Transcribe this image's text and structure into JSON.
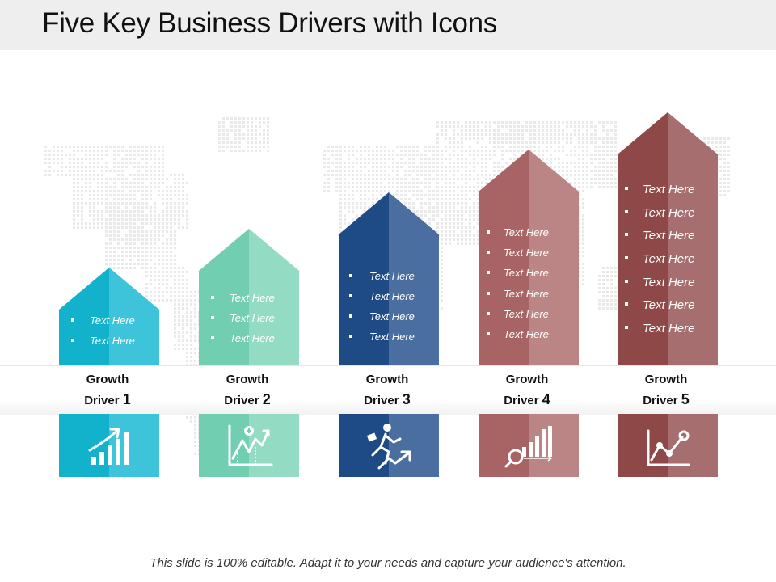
{
  "title": "Five Key Business Drivers with Icons",
  "footer": "This slide is 100% editable. Adapt it to your needs and capture your audience's attention.",
  "drivers": [
    {
      "label_line1": "Growth",
      "label_word2": "Driver",
      "number": "1",
      "dark_color": "#12b2cc",
      "light_color": "#3ec4da",
      "icon": "bar-chart-growth-arrow-icon",
      "bullets": [
        "Text Here",
        "Text Here"
      ]
    },
    {
      "label_line1": "Growth",
      "label_word2": "Driver",
      "number": "2",
      "dark_color": "#72ceb0",
      "light_color": "#94dbc3",
      "icon": "line-chart-plus-icon",
      "bullets": [
        "Text Here",
        "Text Here",
        "Text Here"
      ]
    },
    {
      "label_line1": "Growth",
      "label_word2": "Driver",
      "number": "3",
      "dark_color": "#1e4b86",
      "light_color": "#4a6ea0",
      "icon": "running-man-arrow-icon",
      "bullets": [
        "Text Here",
        "Text Here",
        "Text Here",
        "Text Here"
      ]
    },
    {
      "label_line1": "Growth",
      "label_word2": "Driver",
      "number": "4",
      "dark_color": "#a86464",
      "light_color": "#bc8585",
      "icon": "bars-magnifier-icon",
      "bullets": [
        "Text Here",
        "Text Here",
        "Text Here",
        "Text Here",
        "Text Here",
        "Text Here"
      ]
    },
    {
      "label_line1": "Growth",
      "label_word2": "Driver",
      "number": "5",
      "dark_color": "#8e4848",
      "light_color": "#a66e6e",
      "icon": "line-chart-points-icon",
      "bullets": [
        "Text Here",
        "Text Here",
        "Text Here",
        "Text Here",
        "Text Here",
        "Text Here",
        "Text Here"
      ]
    }
  ]
}
